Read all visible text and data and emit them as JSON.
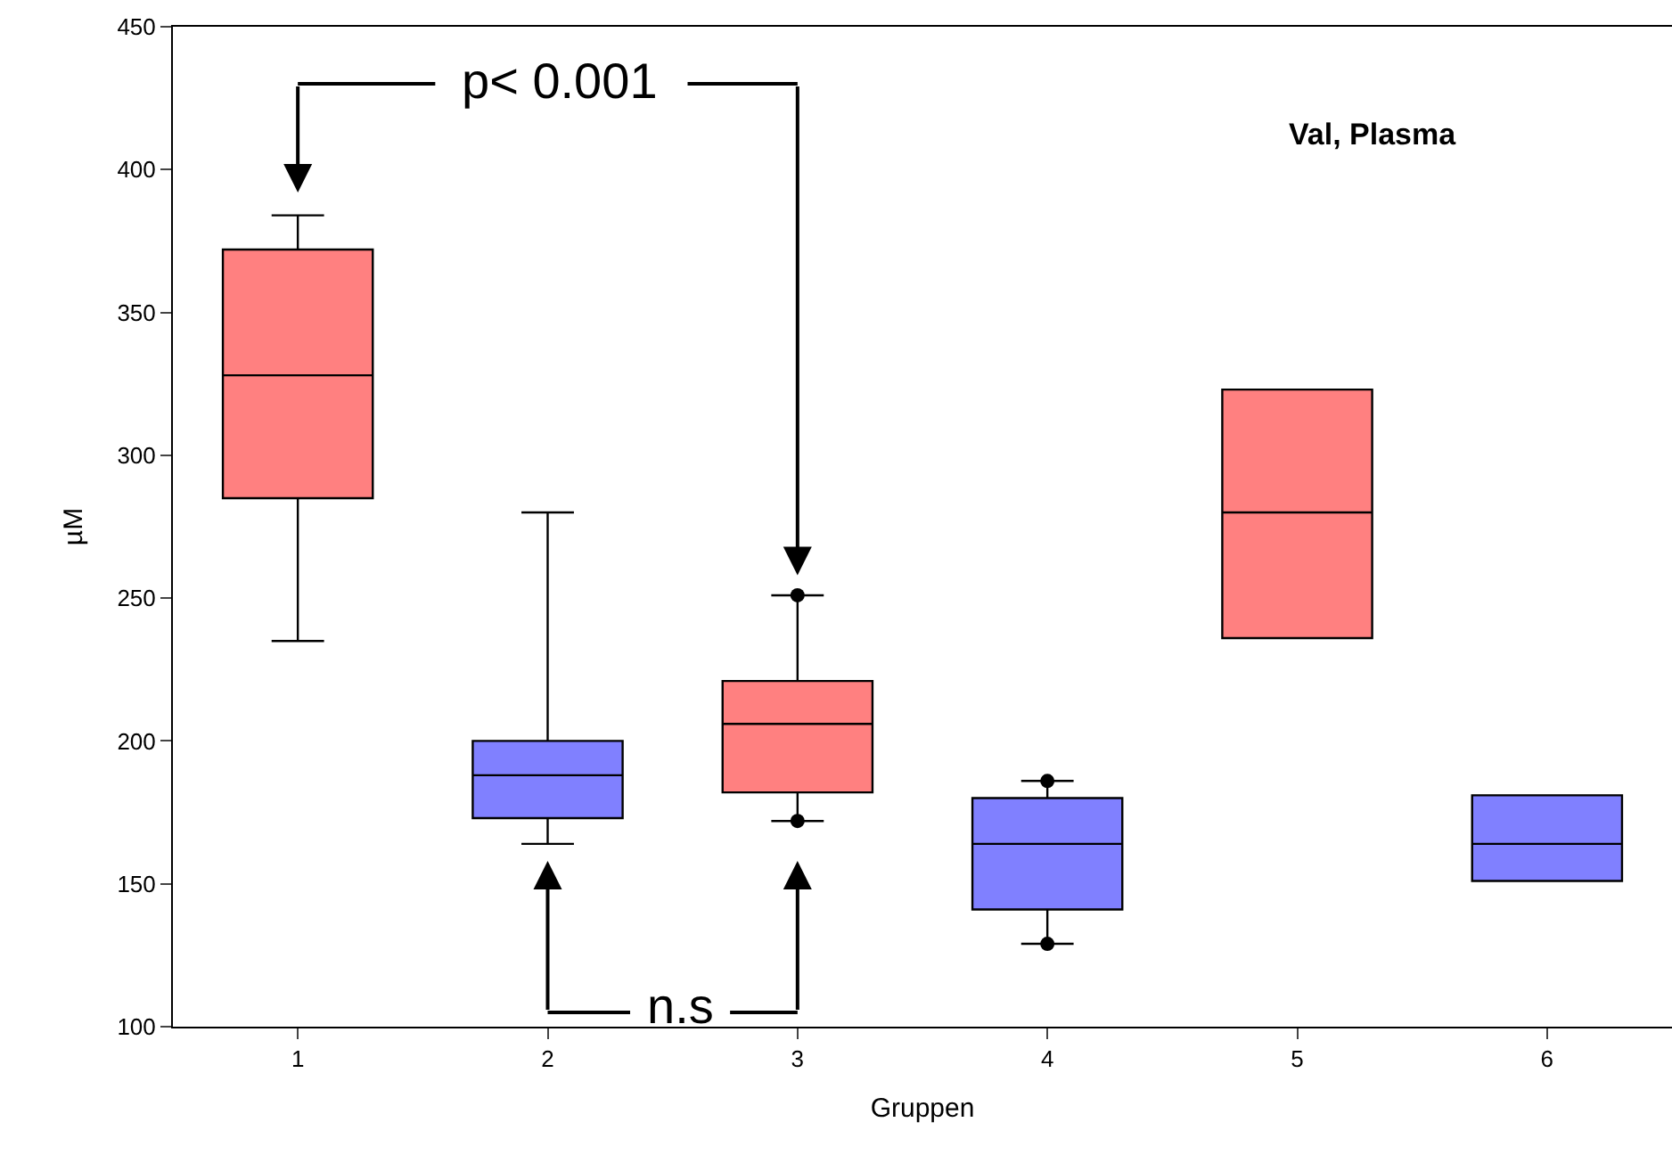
{
  "chart_data": {
    "type": "box",
    "xlabel": "Gruppen",
    "ylabel": "µM",
    "categories": [
      "1",
      "2",
      "3",
      "4",
      "5",
      "6"
    ],
    "colors": [
      "#ff8080",
      "#8080ff",
      "#ff8080",
      "#8080ff",
      "#ff8080",
      "#8080ff"
    ],
    "boxes": [
      {
        "low": 235,
        "q1": 285,
        "median": 328,
        "q3": 372,
        "high": 384
      },
      {
        "low": 164,
        "q1": 173,
        "median": 188,
        "q3": 200,
        "high": 280
      },
      {
        "low": 172,
        "q1": 182,
        "median": 206,
        "q3": 221,
        "high": 251,
        "outliers": [
          251,
          172
        ]
      },
      {
        "low": 129,
        "q1": 141,
        "median": 164,
        "q3": 180,
        "high": 186,
        "outliers": [
          186,
          129
        ]
      },
      {
        "low": 236,
        "q1": 236,
        "median": 280,
        "q3": 323,
        "high": 323
      },
      {
        "low": 151,
        "q1": 151,
        "median": 164,
        "q3": 181,
        "high": 181
      }
    ],
    "ylim": [
      100,
      450
    ],
    "yticks": [
      100,
      150,
      200,
      250,
      300,
      350,
      400,
      450
    ],
    "annotations": [
      "p< 0.001",
      "n.s",
      "Val, Plasma"
    ]
  }
}
